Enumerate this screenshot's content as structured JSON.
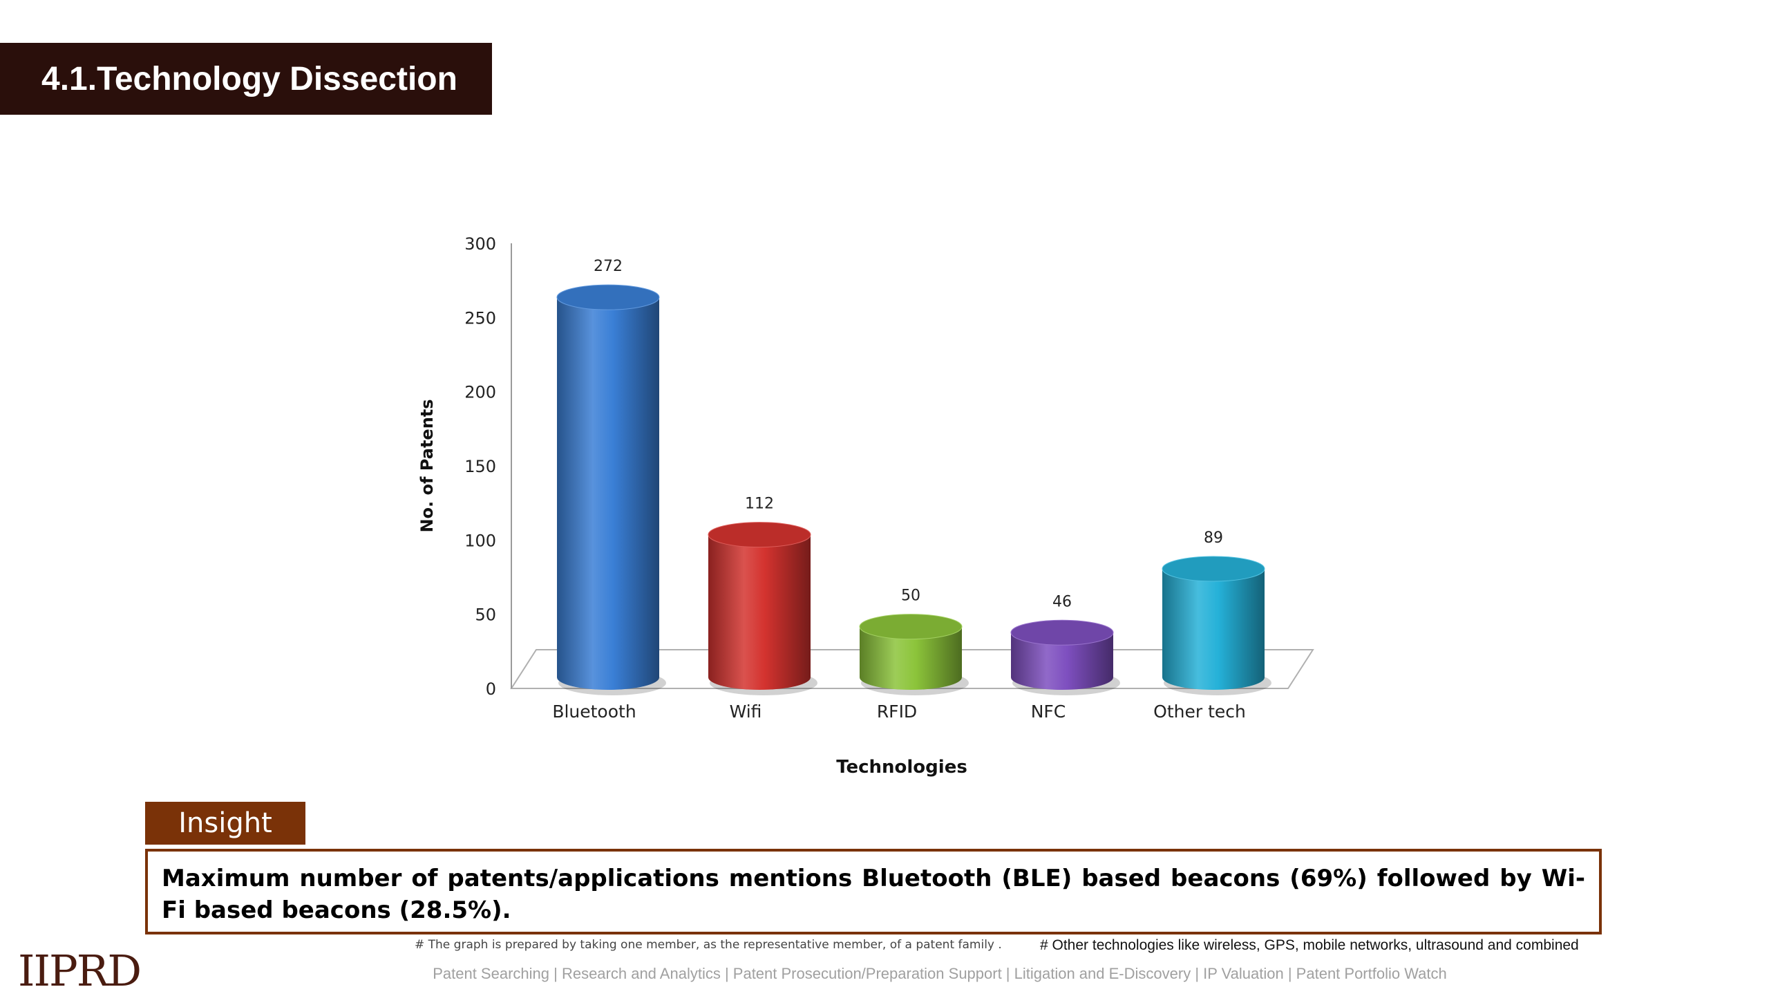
{
  "header": {
    "title": "4.1.Technology Dissection"
  },
  "chart_data": {
    "type": "bar",
    "style": "3d-cylinder",
    "title": "",
    "xlabel": "Technologies",
    "ylabel": "No. of Patents",
    "ylim": [
      0,
      300
    ],
    "yticks": [
      0,
      50,
      100,
      150,
      200,
      250,
      300
    ],
    "categories": [
      "Bluetooth",
      "Wifi",
      "RFID",
      "NFC",
      "Other tech"
    ],
    "values": [
      272,
      112,
      50,
      46,
      89
    ],
    "colors": [
      "#3a7fd6",
      "#d4332f",
      "#8cc43a",
      "#7e4fbf",
      "#25b1d8"
    ],
    "legend": "none",
    "grid": false
  },
  "insight": {
    "label": "Insight",
    "text": "Maximum number of patents/applications mentions Bluetooth (BLE) based beacons (69%) followed by Wi-Fi based beacons (28.5%)."
  },
  "notes": {
    "left": "# The graph is prepared by taking one member, as the representative member, of a patent family .",
    "right": "# Other technologies like wireless, GPS, mobile networks, ultrasound and combined"
  },
  "logo": {
    "text": "IIPRD"
  },
  "footer": {
    "text": "Patent Searching | Research and Analytics | Patent Prosecution/Preparation Support | Litigation and E-Discovery | IP Valuation | Patent Portfolio Watch"
  }
}
